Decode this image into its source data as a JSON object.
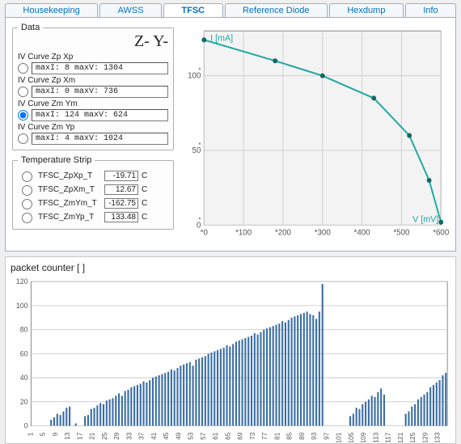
{
  "colors": {
    "accent": "#0070c0",
    "lineChart": "#1fa9a0",
    "lineChartMarker": "#0f6a63",
    "grid": "#d0d0d0",
    "bar": "#3b6ea5",
    "panel_bg": "#ffffff",
    "page_bg": "#f0f0f0"
  },
  "tabs": [
    {
      "label": "Housekeeping",
      "active": false
    },
    {
      "label": "AWSS",
      "active": false
    },
    {
      "label": "TFSC",
      "active": true
    },
    {
      "label": "Reference Diode",
      "active": false
    },
    {
      "label": "Hexdump",
      "active": false
    },
    {
      "label": "Info",
      "active": false
    }
  ],
  "data_group": {
    "legend": "Data",
    "badge": "Z- Y-",
    "curves": [
      {
        "name": "IV Curve Zp Xp",
        "readout": "maxI: 8  maxV: 1304",
        "selected": false
      },
      {
        "name": "IV Curve Zp Xm",
        "readout": "maxI: 0  maxV: 736",
        "selected": false
      },
      {
        "name": "IV Curve Zm Ym",
        "readout": "maxI: 124  maxV: 624",
        "selected": true
      },
      {
        "name": "IV Curve Zm Yp",
        "readout": "maxI: 4  maxV: 1024",
        "selected": false
      }
    ]
  },
  "temp_group": {
    "legend": "Temperature Strip",
    "rows": [
      {
        "name": "TFSC_ZpXp_T",
        "value": "-19.71",
        "unit": "C",
        "selected": false
      },
      {
        "name": "TFSC_ZpXm_T",
        "value": "12.67",
        "unit": "C",
        "selected": false
      },
      {
        "name": "TFSC_ZmYm_T",
        "value": "-162.75",
        "unit": "C",
        "selected": false
      },
      {
        "name": "TFSC_ZmYp_T",
        "value": "133.48",
        "unit": "C",
        "selected": false
      }
    ]
  },
  "iv_chart": {
    "type": "line",
    "x_label": "V [mV]",
    "y_label": "I [mA]",
    "xlim": [
      0,
      600
    ],
    "ylim": [
      0,
      130
    ],
    "x_ticks": [
      0,
      100,
      200,
      300,
      400,
      500,
      600
    ],
    "y_ticks": [
      0,
      50,
      100
    ],
    "points": [
      {
        "x": 0,
        "y": 124
      },
      {
        "x": 180,
        "y": 110
      },
      {
        "x": 300,
        "y": 100
      },
      {
        "x": 430,
        "y": 85
      },
      {
        "x": 520,
        "y": 60
      },
      {
        "x": 570,
        "y": 30
      },
      {
        "x": 600,
        "y": 2
      }
    ],
    "line_color": "#1fa9a0",
    "line_width": 2,
    "marker_color": "#0f6a63",
    "marker_size": 3,
    "background": "#f3f3f3",
    "grid_color": "#d0d0d0",
    "label_fontsize": 10
  },
  "packet_counter": {
    "title": "packet counter  [  ]",
    "type": "bar",
    "ylim": [
      0,
      120
    ],
    "y_ticks": [
      0,
      20,
      40,
      60,
      80,
      100,
      120
    ],
    "x_ticks": [
      1,
      5,
      9,
      13,
      17,
      21,
      25,
      29,
      33,
      37,
      41,
      45,
      49,
      53,
      57,
      61,
      65,
      69,
      73,
      77,
      81,
      85,
      89,
      93,
      97,
      101,
      105,
      109,
      113,
      117,
      121,
      125,
      129,
      133,
      137,
      141,
      145,
      149,
      153
    ],
    "x_tick_step": 4,
    "bar_color": "#3b6ea5",
    "grid_color": "#d0d0d0",
    "background": "#ffffff",
    "bar_width_ratio": 0.55,
    "values": [
      0,
      0,
      0,
      0,
      0,
      0,
      5,
      7,
      10,
      9,
      12,
      15,
      16,
      0,
      2,
      0,
      0,
      8,
      9,
      14,
      15,
      17,
      19,
      18,
      21,
      22,
      23,
      25,
      27,
      25,
      29,
      30,
      32,
      33,
      34,
      35,
      37,
      36,
      38,
      40,
      41,
      42,
      43,
      44,
      45,
      47,
      46,
      48,
      50,
      51,
      52,
      53,
      50,
      55,
      56,
      57,
      58,
      60,
      61,
      62,
      63,
      64,
      65,
      67,
      66,
      68,
      70,
      71,
      72,
      73,
      74,
      75,
      77,
      76,
      78,
      80,
      81,
      82,
      83,
      84,
      85,
      87,
      86,
      88,
      90,
      91,
      92,
      93,
      94,
      95,
      93,
      92,
      89,
      95,
      118,
      0,
      0,
      0,
      0,
      0,
      0,
      0,
      0,
      8,
      10,
      15,
      14,
      18,
      20,
      22,
      25,
      24,
      28,
      31,
      26,
      0,
      0,
      0,
      0,
      0,
      0,
      10,
      12,
      16,
      18,
      22,
      24,
      26,
      28,
      32,
      34,
      36,
      38,
      42,
      44
    ]
  }
}
